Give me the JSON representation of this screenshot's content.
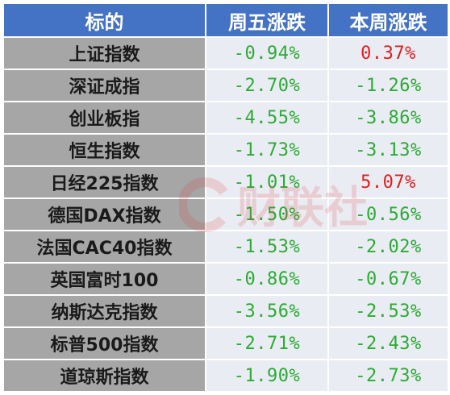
{
  "table": {
    "headers": [
      "标的",
      "周五涨跌",
      "本周涨跌"
    ],
    "rows": [
      {
        "name": "上证指数",
        "fri": "-0.94%",
        "week": "0.37%",
        "fri_dir": "neg",
        "week_dir": "pos"
      },
      {
        "name": "深证成指",
        "fri": "-2.70%",
        "week": "-1.26%",
        "fri_dir": "neg",
        "week_dir": "neg"
      },
      {
        "name": "创业板指",
        "fri": "-4.55%",
        "week": "-3.86%",
        "fri_dir": "neg",
        "week_dir": "neg"
      },
      {
        "name": "恒生指数",
        "fri": "-1.73%",
        "week": "-3.13%",
        "fri_dir": "neg",
        "week_dir": "neg"
      },
      {
        "name": "日经225指数",
        "fri": "-1.01%",
        "week": "5.07%",
        "fri_dir": "neg",
        "week_dir": "pos"
      },
      {
        "name": "德国DAX指数",
        "fri": "-1.50%",
        "week": "-0.56%",
        "fri_dir": "neg",
        "week_dir": "neg"
      },
      {
        "name": "法国CAC40指数",
        "fri": "-1.53%",
        "week": "-2.02%",
        "fri_dir": "neg",
        "week_dir": "neg"
      },
      {
        "name": "英国富时100",
        "fri": "-0.86%",
        "week": "-0.67%",
        "fri_dir": "neg",
        "week_dir": "neg"
      },
      {
        "name": "纳斯达克指数",
        "fri": "-3.56%",
        "week": "-2.53%",
        "fri_dir": "neg",
        "week_dir": "neg"
      },
      {
        "name": "标普500指数",
        "fri": "-2.71%",
        "week": "-2.43%",
        "fri_dir": "neg",
        "week_dir": "neg"
      },
      {
        "name": "道琼斯指数",
        "fri": "-1.90%",
        "week": "-2.73%",
        "fri_dir": "neg",
        "week_dir": "neg"
      }
    ]
  },
  "watermark": {
    "text": "财联社"
  },
  "colors": {
    "header_bg": "#4472c4",
    "name_bg": "#a6a6a6",
    "value_bg": "#e9ecf2",
    "negative": "#2bab34",
    "positive": "#e02020"
  }
}
